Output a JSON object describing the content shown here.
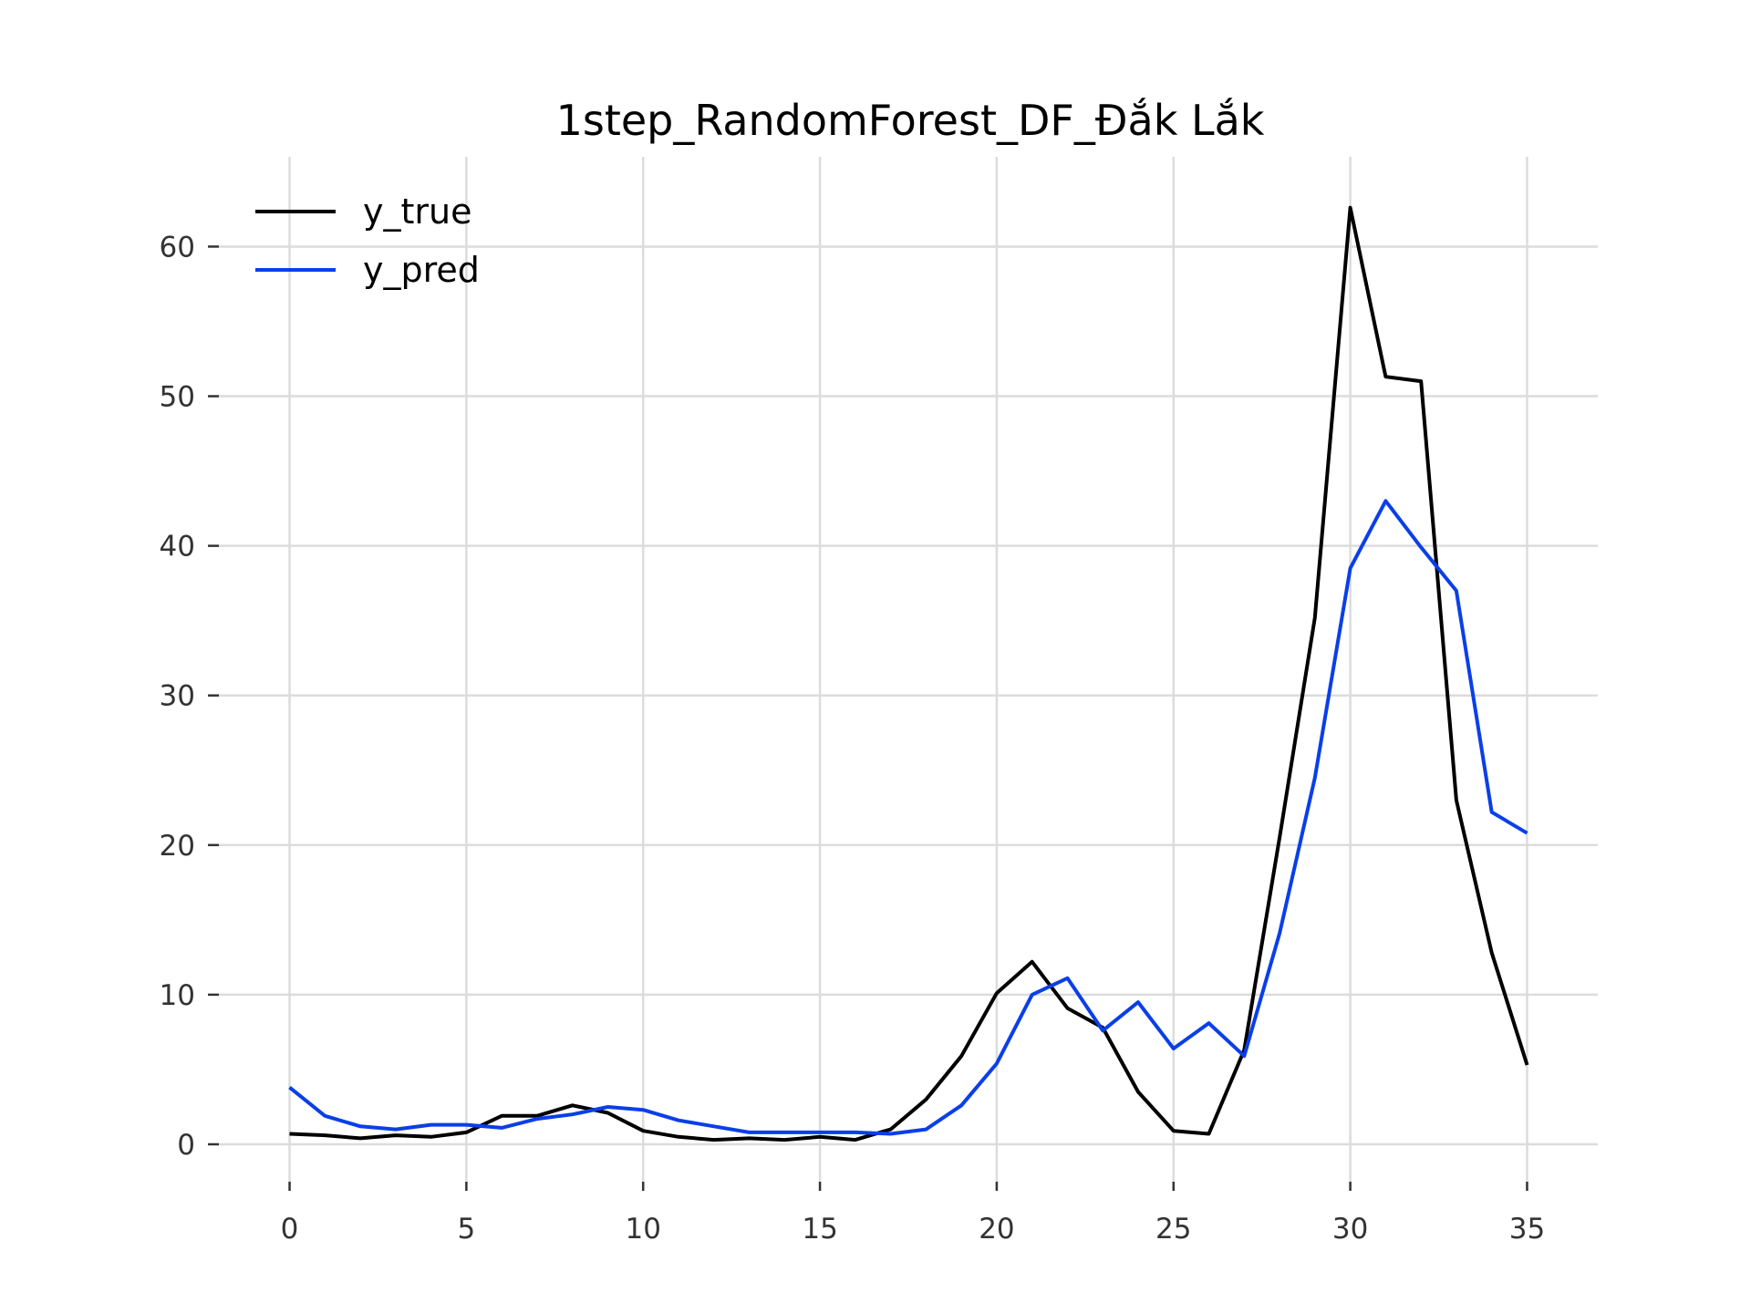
{
  "chart_data": {
    "type": "line",
    "title": "1step_RandomForest_DF_Đắk Lắk",
    "xlabel": "",
    "ylabel": "",
    "xlim": [
      -2,
      37
    ],
    "ylim": [
      -2.5,
      66
    ],
    "xticks": [
      0,
      5,
      10,
      15,
      20,
      25,
      30,
      35
    ],
    "yticks": [
      0,
      10,
      20,
      30,
      40,
      50,
      60
    ],
    "grid": true,
    "legend_position": "top-left",
    "x": [
      0,
      1,
      2,
      3,
      4,
      5,
      6,
      7,
      8,
      9,
      10,
      11,
      12,
      13,
      14,
      15,
      16,
      17,
      18,
      19,
      20,
      21,
      22,
      23,
      24,
      25,
      26,
      27,
      28,
      29,
      30,
      31,
      32,
      33,
      34,
      35
    ],
    "series": [
      {
        "name": "y_true",
        "color": "#000000",
        "values": [
          0.7,
          0.6,
          0.4,
          0.6,
          0.5,
          0.8,
          1.9,
          1.9,
          2.6,
          2.1,
          0.9,
          0.5,
          0.3,
          0.4,
          0.3,
          0.5,
          0.3,
          1.0,
          3.0,
          5.9,
          10.1,
          12.2,
          9.1,
          7.8,
          3.5,
          0.9,
          0.7,
          6.3,
          20.5,
          35.2,
          62.6,
          51.3,
          51.0,
          23.0,
          12.8,
          5.3
        ]
      },
      {
        "name": "y_pred",
        "color": "#0a3fe8",
        "values": [
          3.8,
          1.9,
          1.2,
          1.0,
          1.3,
          1.3,
          1.1,
          1.7,
          2.0,
          2.5,
          2.3,
          1.6,
          1.2,
          0.8,
          0.8,
          0.8,
          0.8,
          0.7,
          1.0,
          2.6,
          5.4,
          10.0,
          11.1,
          7.6,
          9.5,
          6.4,
          8.1,
          5.9,
          14.1,
          24.5,
          38.5,
          43.0,
          39.9,
          37.0,
          22.2,
          20.8
        ]
      }
    ]
  }
}
